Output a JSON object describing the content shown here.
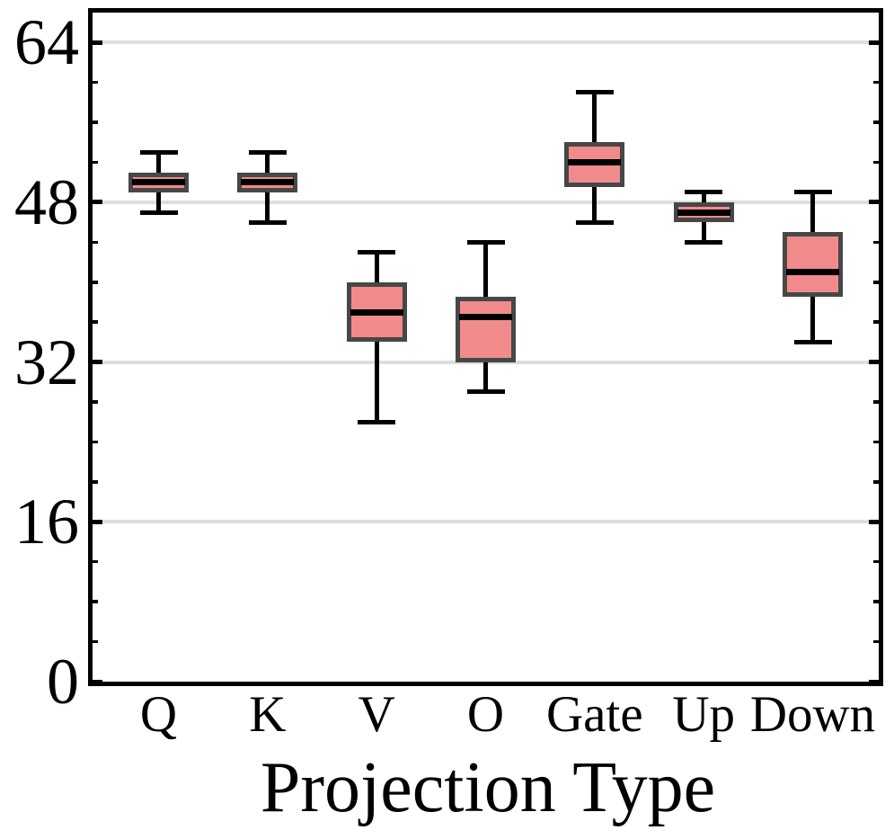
{
  "chart_data": {
    "type": "box",
    "title": "",
    "xlabel": "Projection Type",
    "ylabel": "",
    "categories": [
      "Q",
      "K",
      "V",
      "O",
      "Gate",
      "Up",
      "Down"
    ],
    "series": [
      {
        "name": "Q",
        "whislo": 47,
        "q1": 49,
        "med": 50,
        "q3": 51,
        "whishi": 53
      },
      {
        "name": "K",
        "whislo": 46,
        "q1": 49,
        "med": 50,
        "q3": 51,
        "whishi": 53
      },
      {
        "name": "V",
        "whislo": 26,
        "q1": 34,
        "med": 37,
        "q3": 40,
        "whishi": 43
      },
      {
        "name": "O",
        "whislo": 29,
        "q1": 32,
        "med": 36.5,
        "q3": 38.5,
        "whishi": 44
      },
      {
        "name": "Gate",
        "whislo": 46,
        "q1": 49.5,
        "med": 52,
        "q3": 54,
        "whishi": 59
      },
      {
        "name": "Up",
        "whislo": 44,
        "q1": 46,
        "med": 47,
        "q3": 48,
        "whishi": 49
      },
      {
        "name": "Down",
        "whislo": 34,
        "q1": 38.5,
        "med": 41,
        "q3": 45,
        "whishi": 49
      }
    ],
    "yticks": [
      0,
      16,
      32,
      48,
      64
    ],
    "minor_tick_step": 4,
    "ylim": [
      0,
      67
    ],
    "grid": "horizontal-major",
    "legend": "none",
    "colors": {
      "box_fill": "#F18A8A",
      "box_edge": "#474747",
      "median": "#000000",
      "whisker": "#000000",
      "grid": "#DDDDDD",
      "spine": "#000000",
      "text": "#000000"
    }
  }
}
